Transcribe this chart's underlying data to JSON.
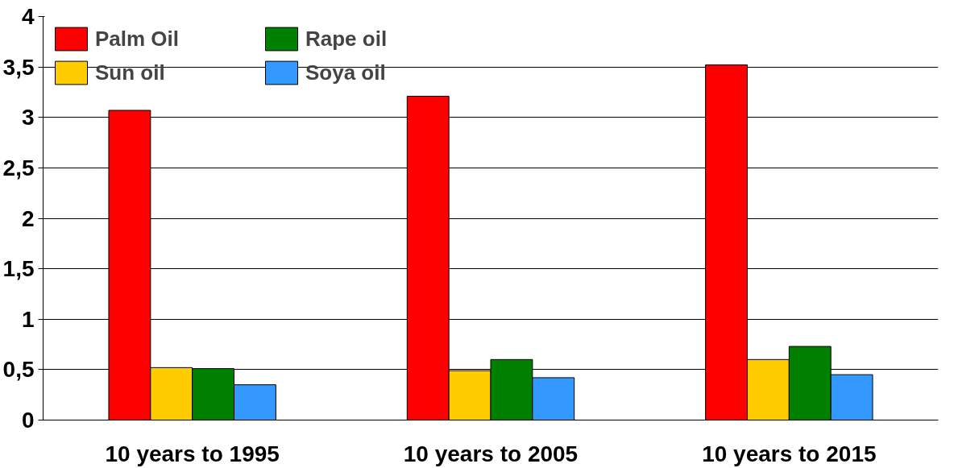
{
  "chart_data": {
    "type": "bar",
    "categories": [
      "10 years to 1995",
      "10 years to 2005",
      "10 years to 2015"
    ],
    "series": [
      {
        "name": "Palm Oil",
        "color": "#ff0000",
        "values": [
          3.07,
          3.21,
          3.52
        ]
      },
      {
        "name": "Sun oil",
        "color": "#ffcc00",
        "values": [
          0.52,
          0.49,
          0.6
        ]
      },
      {
        "name": "Rape oil",
        "color": "#008000",
        "values": [
          0.51,
          0.6,
          0.73
        ]
      },
      {
        "name": "Soya oil",
        "color": "#3399ff",
        "values": [
          0.35,
          0.42,
          0.45
        ]
      }
    ],
    "ylim": [
      0,
      4
    ],
    "yticks": [
      0,
      {
        "value": 0.5,
        "label": "0,5"
      },
      1,
      {
        "value": 1.5,
        "label": "1,5"
      },
      2,
      {
        "value": 2.5,
        "label": "2,5"
      },
      3,
      {
        "value": 3.5,
        "label": "3,5"
      },
      4
    ],
    "grid": "y",
    "legend": "top left"
  }
}
